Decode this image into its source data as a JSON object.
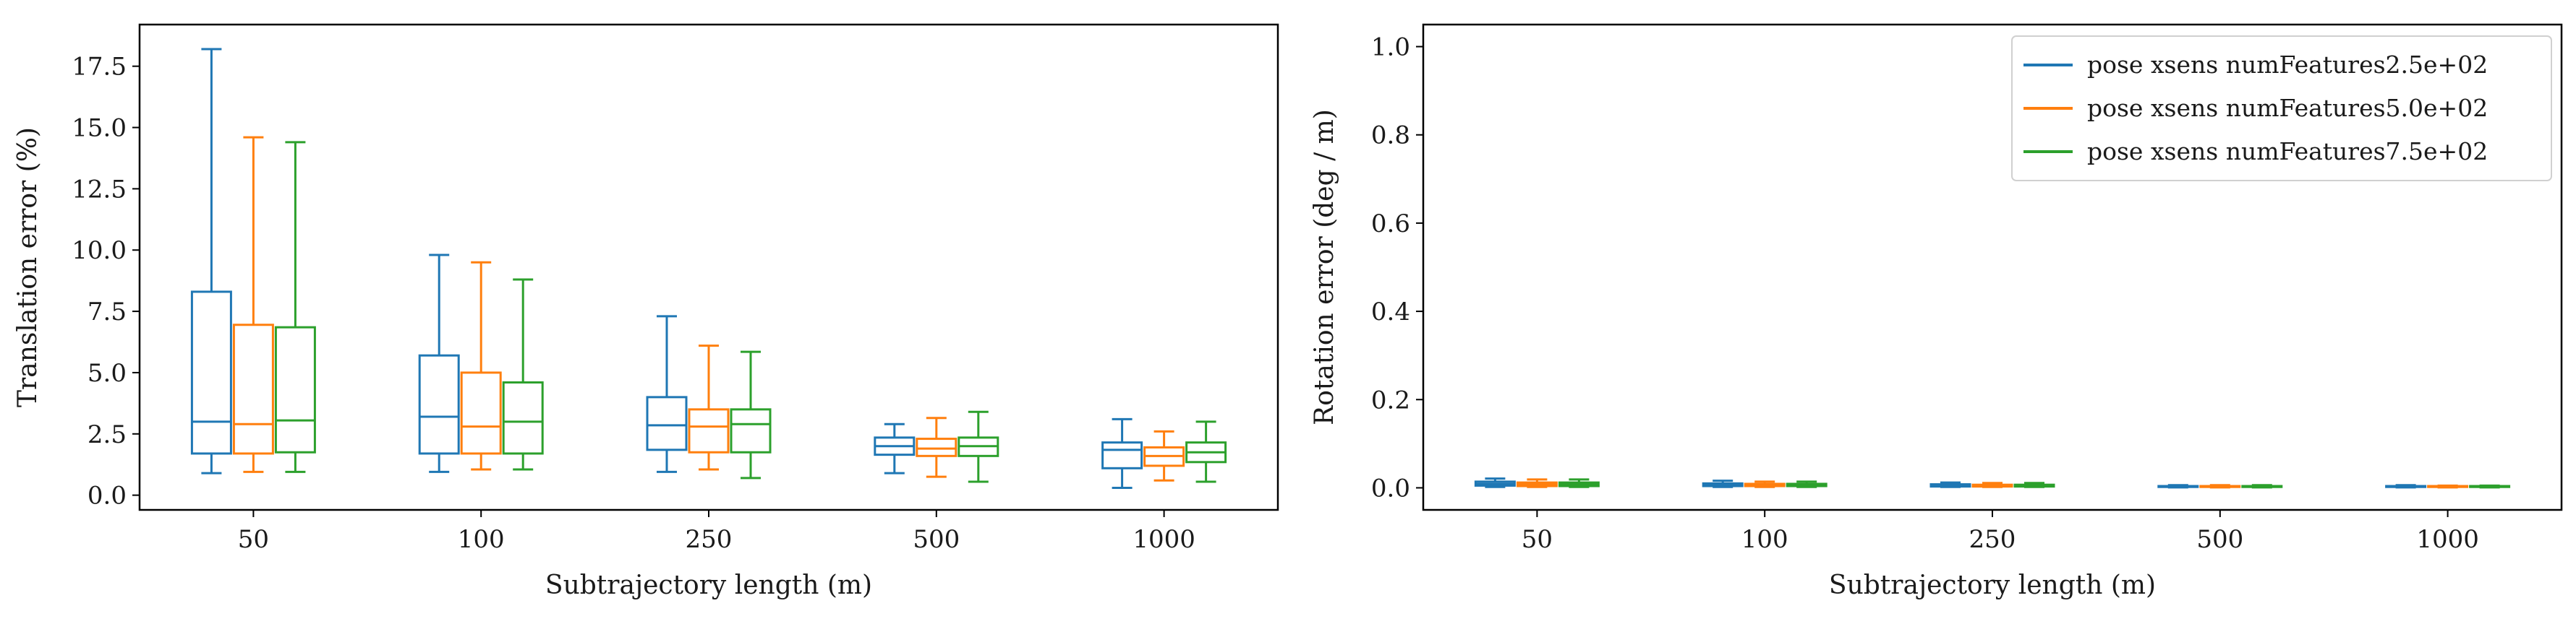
{
  "chart_data": [
    {
      "type": "box",
      "xlabel": "Subtrajectory length (m)",
      "ylabel": "Translation error (%)",
      "ylim": [
        -0.6,
        19.2
      ],
      "yticks": [
        "0.0",
        "2.5",
        "5.0",
        "7.5",
        "10.0",
        "12.5",
        "15.0",
        "17.5"
      ],
      "categories": [
        "50",
        "100",
        "250",
        "500",
        "1000"
      ],
      "grid": false,
      "series": [
        {
          "name": "pose xsens numFeatures2.5e+02",
          "color": "#1f77b4",
          "boxes": [
            {
              "whislo": 0.9,
              "q1": 1.7,
              "med": 3.0,
              "q3": 8.3,
              "whishi": 18.2
            },
            {
              "whislo": 0.95,
              "q1": 1.7,
              "med": 3.2,
              "q3": 5.7,
              "whishi": 9.8
            },
            {
              "whislo": 0.95,
              "q1": 1.85,
              "med": 2.85,
              "q3": 4.0,
              "whishi": 7.3
            },
            {
              "whislo": 0.9,
              "q1": 1.65,
              "med": 2.0,
              "q3": 2.35,
              "whishi": 2.9
            },
            {
              "whislo": 0.3,
              "q1": 1.1,
              "med": 1.85,
              "q3": 2.15,
              "whishi": 3.1
            }
          ]
        },
        {
          "name": "pose xsens numFeatures5.0e+02",
          "color": "#ff7f0e",
          "boxes": [
            {
              "whislo": 0.95,
              "q1": 1.7,
              "med": 2.9,
              "q3": 6.95,
              "whishi": 14.6
            },
            {
              "whislo": 1.05,
              "q1": 1.7,
              "med": 2.8,
              "q3": 5.0,
              "whishi": 9.5
            },
            {
              "whislo": 1.05,
              "q1": 1.75,
              "med": 2.8,
              "q3": 3.5,
              "whishi": 6.1
            },
            {
              "whislo": 0.75,
              "q1": 1.6,
              "med": 1.9,
              "q3": 2.3,
              "whishi": 3.15
            },
            {
              "whislo": 0.6,
              "q1": 1.2,
              "med": 1.6,
              "q3": 1.95,
              "whishi": 2.6
            }
          ]
        },
        {
          "name": "pose xsens numFeatures7.5e+02",
          "color": "#2ca02c",
          "boxes": [
            {
              "whislo": 0.95,
              "q1": 1.75,
              "med": 3.05,
              "q3": 6.85,
              "whishi": 14.4
            },
            {
              "whislo": 1.05,
              "q1": 1.7,
              "med": 3.0,
              "q3": 4.6,
              "whishi": 8.8
            },
            {
              "whislo": 0.7,
              "q1": 1.75,
              "med": 2.9,
              "q3": 3.5,
              "whishi": 5.85
            },
            {
              "whislo": 0.55,
              "q1": 1.6,
              "med": 2.0,
              "q3": 2.35,
              "whishi": 3.4
            },
            {
              "whislo": 0.55,
              "q1": 1.35,
              "med": 1.75,
              "q3": 2.15,
              "whishi": 3.0
            }
          ]
        }
      ]
    },
    {
      "type": "box",
      "xlabel": "Subtrajectory length (m)",
      "ylabel": "Rotation error (deg / m)",
      "ylim": [
        -0.05,
        1.05
      ],
      "yticks": [
        "0.0",
        "0.2",
        "0.4",
        "0.6",
        "0.8",
        "1.0"
      ],
      "categories": [
        "50",
        "100",
        "250",
        "500",
        "1000"
      ],
      "grid": false,
      "legend": {
        "position": "top-right",
        "entries": [
          "pose xsens numFeatures2.5e+02",
          "pose xsens numFeatures5.0e+02",
          "pose xsens numFeatures7.5e+02"
        ]
      },
      "series": [
        {
          "name": "pose xsens numFeatures2.5e+02",
          "color": "#1f77b4",
          "boxes": [
            {
              "whislo": 0.002,
              "q1": 0.005,
              "med": 0.009,
              "q3": 0.014,
              "whishi": 0.021
            },
            {
              "whislo": 0.002,
              "q1": 0.004,
              "med": 0.007,
              "q3": 0.01,
              "whishi": 0.016
            },
            {
              "whislo": 0.002,
              "q1": 0.003,
              "med": 0.005,
              "q3": 0.008,
              "whishi": 0.012
            },
            {
              "whislo": 0.001,
              "q1": 0.002,
              "med": 0.003,
              "q3": 0.004,
              "whishi": 0.006
            },
            {
              "whislo": 0.001,
              "q1": 0.002,
              "med": 0.003,
              "q3": 0.004,
              "whishi": 0.006
            }
          ]
        },
        {
          "name": "pose xsens numFeatures5.0e+02",
          "color": "#ff7f0e",
          "boxes": [
            {
              "whislo": 0.002,
              "q1": 0.004,
              "med": 0.008,
              "q3": 0.012,
              "whishi": 0.019
            },
            {
              "whislo": 0.002,
              "q1": 0.004,
              "med": 0.006,
              "q3": 0.009,
              "whishi": 0.014
            },
            {
              "whislo": 0.002,
              "q1": 0.003,
              "med": 0.005,
              "q3": 0.007,
              "whishi": 0.011
            },
            {
              "whislo": 0.001,
              "q1": 0.002,
              "med": 0.003,
              "q3": 0.004,
              "whishi": 0.006
            },
            {
              "whislo": 0.001,
              "q1": 0.002,
              "med": 0.003,
              "q3": 0.004,
              "whishi": 0.005
            }
          ]
        },
        {
          "name": "pose xsens numFeatures7.5e+02",
          "color": "#2ca02c",
          "boxes": [
            {
              "whislo": 0.002,
              "q1": 0.004,
              "med": 0.008,
              "q3": 0.012,
              "whishi": 0.019
            },
            {
              "whislo": 0.002,
              "q1": 0.004,
              "med": 0.006,
              "q3": 0.009,
              "whishi": 0.014
            },
            {
              "whislo": 0.002,
              "q1": 0.003,
              "med": 0.005,
              "q3": 0.007,
              "whishi": 0.011
            },
            {
              "whislo": 0.001,
              "q1": 0.002,
              "med": 0.003,
              "q3": 0.004,
              "whishi": 0.006
            },
            {
              "whislo": 0.001,
              "q1": 0.002,
              "med": 0.003,
              "q3": 0.004,
              "whishi": 0.005
            }
          ]
        }
      ]
    }
  ]
}
